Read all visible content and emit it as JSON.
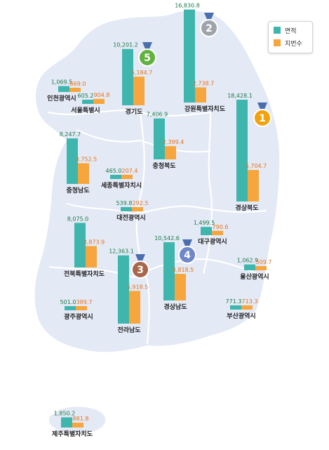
{
  "legend": {
    "area_label": "면적",
    "lots_label": "지번수"
  },
  "colors": {
    "area": "#3fb6ad",
    "lots": "#f6a63c",
    "area_text": "#1d7a4c",
    "lots_text": "#e8731a",
    "map": "#e3e9f5",
    "map_stroke": "#ffffff"
  },
  "chart_data": {
    "type": "bar",
    "series": [
      {
        "name": "면적",
        "key": "area"
      },
      {
        "name": "지번수",
        "key": "lots"
      }
    ],
    "regions": [
      {
        "id": "incheon",
        "name": "인천광역시",
        "area": 1069.5,
        "lots": 669.0,
        "area_label": "1,069.5",
        "lots_label": "669.0"
      },
      {
        "id": "seoul",
        "name": "서울특별시",
        "area": 605.2,
        "lots": 904.8,
        "area_label": "605.2",
        "lots_label": "904.8"
      },
      {
        "id": "gyeonggi",
        "name": "경기도",
        "area": 10201.2,
        "lots": 5184.7,
        "area_label": "10,201.2",
        "lots_label": "5,184.7",
        "rank": "5"
      },
      {
        "id": "gangwon",
        "name": "강원특별자치도",
        "area": 16830.8,
        "lots": 2738.7,
        "area_label": "16,830.8",
        "lots_label": "2,738.7",
        "rank": "2"
      },
      {
        "id": "chungbuk",
        "name": "충청북도",
        "area": 7406.9,
        "lots": 2399.4,
        "area_label": "7,406.9",
        "lots_label": "2,399.4"
      },
      {
        "id": "gyeongbuk",
        "name": "경상북도",
        "area": 18428.1,
        "lots": 5704.7,
        "area_label": "18,428.1",
        "lots_label": "5,704.7",
        "rank": "1"
      },
      {
        "id": "chungnam",
        "name": "충청남도",
        "area": 8247.7,
        "lots": 3752.5,
        "area_label": "8,247.7",
        "lots_label": "3,752.5"
      },
      {
        "id": "sejong",
        "name": "세종특별자치시",
        "area": 465.0,
        "lots": 207.4,
        "area_label": "465.0",
        "lots_label": "207.4"
      },
      {
        "id": "daejeon",
        "name": "대전광역시",
        "area": 539.8,
        "lots": 292.5,
        "area_label": "539.8",
        "lots_label": "292.5"
      },
      {
        "id": "daegu",
        "name": "대구광역시",
        "area": 1499.5,
        "lots": 790.6,
        "area_label": "1,499.5",
        "lots_label": "790.6"
      },
      {
        "id": "jeonbuk",
        "name": "전북특별자치도",
        "area": 8075.0,
        "lots": 3873.9,
        "area_label": "8,075.0",
        "lots_label": "3,873.9"
      },
      {
        "id": "jeonnam",
        "name": "전라남도",
        "area": 12363.1,
        "lots": 5918.5,
        "area_label": "12,363.1",
        "lots_label": "5,918.5",
        "rank": "3"
      },
      {
        "id": "gyeongnam",
        "name": "경상남도",
        "area": 10542.6,
        "lots": 4818.5,
        "area_label": "10,542.6",
        "lots_label": "4,818.5",
        "rank": "4"
      },
      {
        "id": "ulsan",
        "name": "울산광역시",
        "area": 1062.9,
        "lots": 509.7,
        "area_label": "1,062.9",
        "lots_label": "509.7"
      },
      {
        "id": "gwangju",
        "name": "광주광역시",
        "area": 501.0,
        "lots": 389.7,
        "area_label": "501.0",
        "lots_label": "389.7"
      },
      {
        "id": "busan",
        "name": "부산광역시",
        "area": 771.3,
        "lots": 713.3,
        "area_label": "771.3",
        "lots_label": "713.3"
      },
      {
        "id": "jeju",
        "name": "제주특별자치도",
        "area": 1850.2,
        "lots": 881.8,
        "area_label": "1,850.2",
        "lots_label": "881.8"
      }
    ]
  }
}
